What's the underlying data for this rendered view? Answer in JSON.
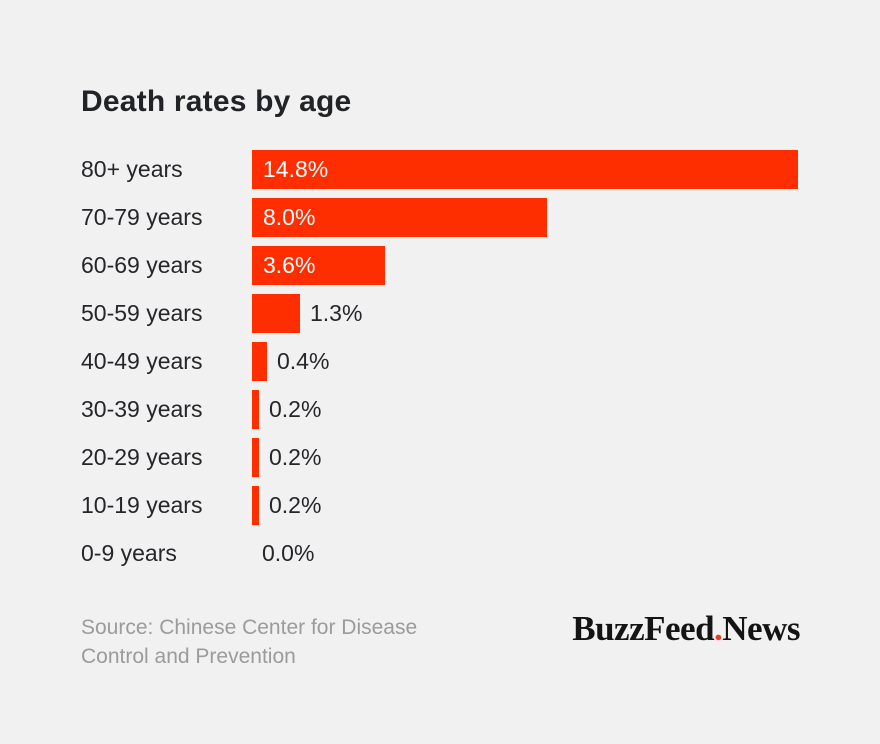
{
  "page": {
    "background": "#F1F1F2"
  },
  "chart_data": {
    "type": "bar",
    "orientation": "horizontal",
    "title": "Death rates by age",
    "categories": [
      "80+ years",
      "70-79 years",
      "60-69 years",
      "50-59 years",
      "40-49 years",
      "30-39 years",
      "20-29 years",
      "10-19 years",
      "0-9 years"
    ],
    "values": [
      14.8,
      8.0,
      3.6,
      1.3,
      0.4,
      0.2,
      0.2,
      0.2,
      0.0
    ],
    "value_labels": [
      "14.8%",
      "8.0%",
      "3.6%",
      "1.3%",
      "0.4%",
      "0.2%",
      "0.2%",
      "0.2%",
      "0.0%"
    ],
    "xlim": [
      0,
      14.8
    ],
    "bar_color": "#FF2E00",
    "inside_label_color": "#FFFFFF",
    "outside_label_color": "#26262A",
    "grid": false,
    "legend": false
  },
  "footer": {
    "source_line1": "Source: Chinese Center for Disease",
    "source_line2": "Control and Prevention",
    "logo": {
      "part1": "BuzzFeed",
      "dot": ".",
      "part2": "News",
      "dot_color": "#EE3B28"
    }
  }
}
